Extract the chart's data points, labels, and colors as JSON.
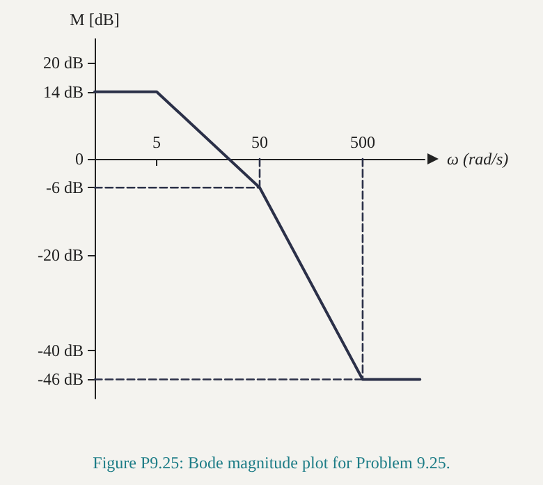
{
  "chart_data": {
    "type": "line",
    "xlabel": "ω (rad/s)",
    "ylabel": "M [dB]",
    "log": "x",
    "grid": false,
    "marker": "none",
    "xlim": [
      1.25,
      2000
    ],
    "xticks": [
      5,
      50,
      500
    ],
    "ylim": [
      -50,
      25
    ],
    "yticks": [
      {
        "value": 20,
        "label": "20 dB"
      },
      {
        "value": 14,
        "label": "14 dB"
      },
      0,
      {
        "value": -6,
        "label": "-6 dB"
      },
      {
        "value": -20,
        "label": "-20 dB"
      },
      {
        "value": -40,
        "label": "-40 dB"
      },
      {
        "value": -46,
        "label": "-46 dB"
      }
    ],
    "series": [
      {
        "color": "#2b3048",
        "x": [
          1.25,
          5,
          50,
          500,
          1800
        ],
        "values": [
          14,
          14,
          -6,
          -46,
          -46
        ],
        "line_style": "solid"
      },
      {
        "color": "#2b3048",
        "x": [
          1.25,
          50
        ],
        "values": [
          -6,
          -6
        ],
        "line_style": "dashed"
      },
      {
        "color": "#2b3048",
        "x": [
          50,
          50
        ],
        "values": [
          0,
          -6
        ],
        "line_style": "dashed"
      },
      {
        "color": "#2b3048",
        "x": [
          500,
          500
        ],
        "values": [
          0,
          -46
        ],
        "line_style": "dashed"
      },
      {
        "color": "#2b3048",
        "x": [
          1.25,
          500
        ],
        "values": [
          -46,
          -46
        ],
        "line_style": "dashed"
      }
    ],
    "annotations": [
      "Figure P9.25: Bode magnitude plot for Problem 9.25."
    ]
  }
}
